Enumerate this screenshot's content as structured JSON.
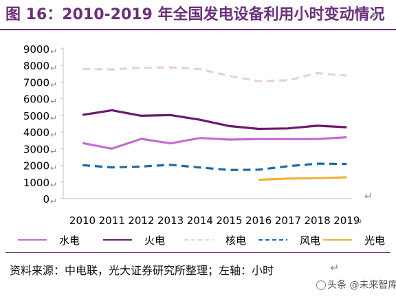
{
  "header": {
    "title": "图 16：2010-2019 年全国发电设备利用小时变动情况"
  },
  "chart_data": {
    "type": "line",
    "title": "图 16：2010-2019 年全国发电设备利用小时变动情况",
    "xlabel": "",
    "ylabel": "",
    "categories": [
      "2010",
      "2011",
      "2012",
      "2013",
      "2014",
      "2015",
      "2016",
      "2017",
      "2018",
      "2019"
    ],
    "ylim": [
      0,
      9000
    ],
    "yticks": [
      "0",
      "1000",
      "2000",
      "3000",
      "4000",
      "5000",
      "6000",
      "7000",
      "8000",
      "9000"
    ],
    "grid": false,
    "legend_position": "bottom",
    "series": [
      {
        "name": "水电",
        "color": "#c76ad6",
        "style": "solid",
        "values": [
          3340,
          3000,
          3590,
          3320,
          3640,
          3550,
          3580,
          3580,
          3580,
          3690
        ]
      },
      {
        "name": "火电",
        "color": "#6a1a6e",
        "style": "solid",
        "values": [
          5030,
          5310,
          4980,
          5020,
          4740,
          4360,
          4190,
          4220,
          4380,
          4290
        ]
      },
      {
        "name": "核电",
        "color": "#e8cde8",
        "style": "dashed",
        "values": [
          7790,
          7760,
          7860,
          7880,
          7780,
          7370,
          7060,
          7110,
          7540,
          7390
        ]
      },
      {
        "name": "风电",
        "color": "#1f6aa5",
        "style": "dashed",
        "values": [
          2010,
          1880,
          1930,
          2030,
          1870,
          1720,
          1740,
          1950,
          2100,
          2080
        ]
      },
      {
        "name": "光电",
        "color": "#f0b23a",
        "style": "solid",
        "values": [
          null,
          null,
          null,
          null,
          null,
          null,
          1130,
          1200,
          1230,
          1280
        ]
      }
    ]
  },
  "footer": {
    "source": "资料来源：中电联，光大证券研究所整理；左轴：小时",
    "watermark": "头条 @未来智库"
  },
  "marks": {
    "return_glyph": "↵"
  }
}
